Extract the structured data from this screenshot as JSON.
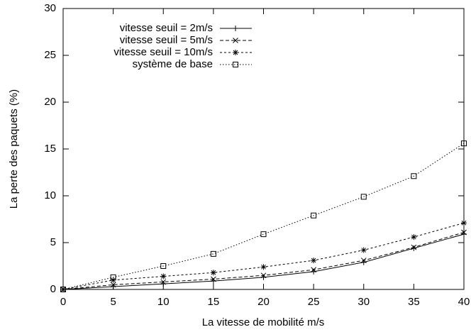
{
  "chart_data": {
    "type": "line",
    "xlabel": "La vitesse de mobilité m/s",
    "ylabel": "La perte des paquets (%)",
    "x": [
      0,
      5,
      10,
      15,
      20,
      25,
      30,
      35,
      40
    ],
    "xlim": [
      0,
      40
    ],
    "xticks": [
      0,
      5,
      10,
      15,
      20,
      25,
      30,
      35,
      40
    ],
    "ylim": [
      0,
      30
    ],
    "yticks": [
      0,
      5,
      10,
      15,
      20,
      25,
      30
    ],
    "legend": "upper left",
    "series": [
      {
        "name": "vitesse seuil = 2m/s",
        "color": "#000000",
        "values": [
          0,
          0.3,
          0.6,
          0.9,
          1.3,
          1.9,
          2.9,
          4.4,
          5.9
        ]
      },
      {
        "name": "vitesse seuil = 5m/s",
        "color": "#000000",
        "values": [
          0,
          0.5,
          0.8,
          1.1,
          1.5,
          2.1,
          3.1,
          4.5,
          6.1
        ]
      },
      {
        "name": "vitesse seuil = 10m/s",
        "color": "#000000",
        "values": [
          0,
          1.0,
          1.4,
          1.8,
          2.4,
          3.1,
          4.2,
          5.6,
          7.1
        ]
      },
      {
        "name": "système de base",
        "color": "#000000",
        "values": [
          0,
          1.3,
          2.5,
          3.8,
          5.9,
          7.9,
          9.9,
          12.1,
          15.6
        ]
      }
    ]
  }
}
